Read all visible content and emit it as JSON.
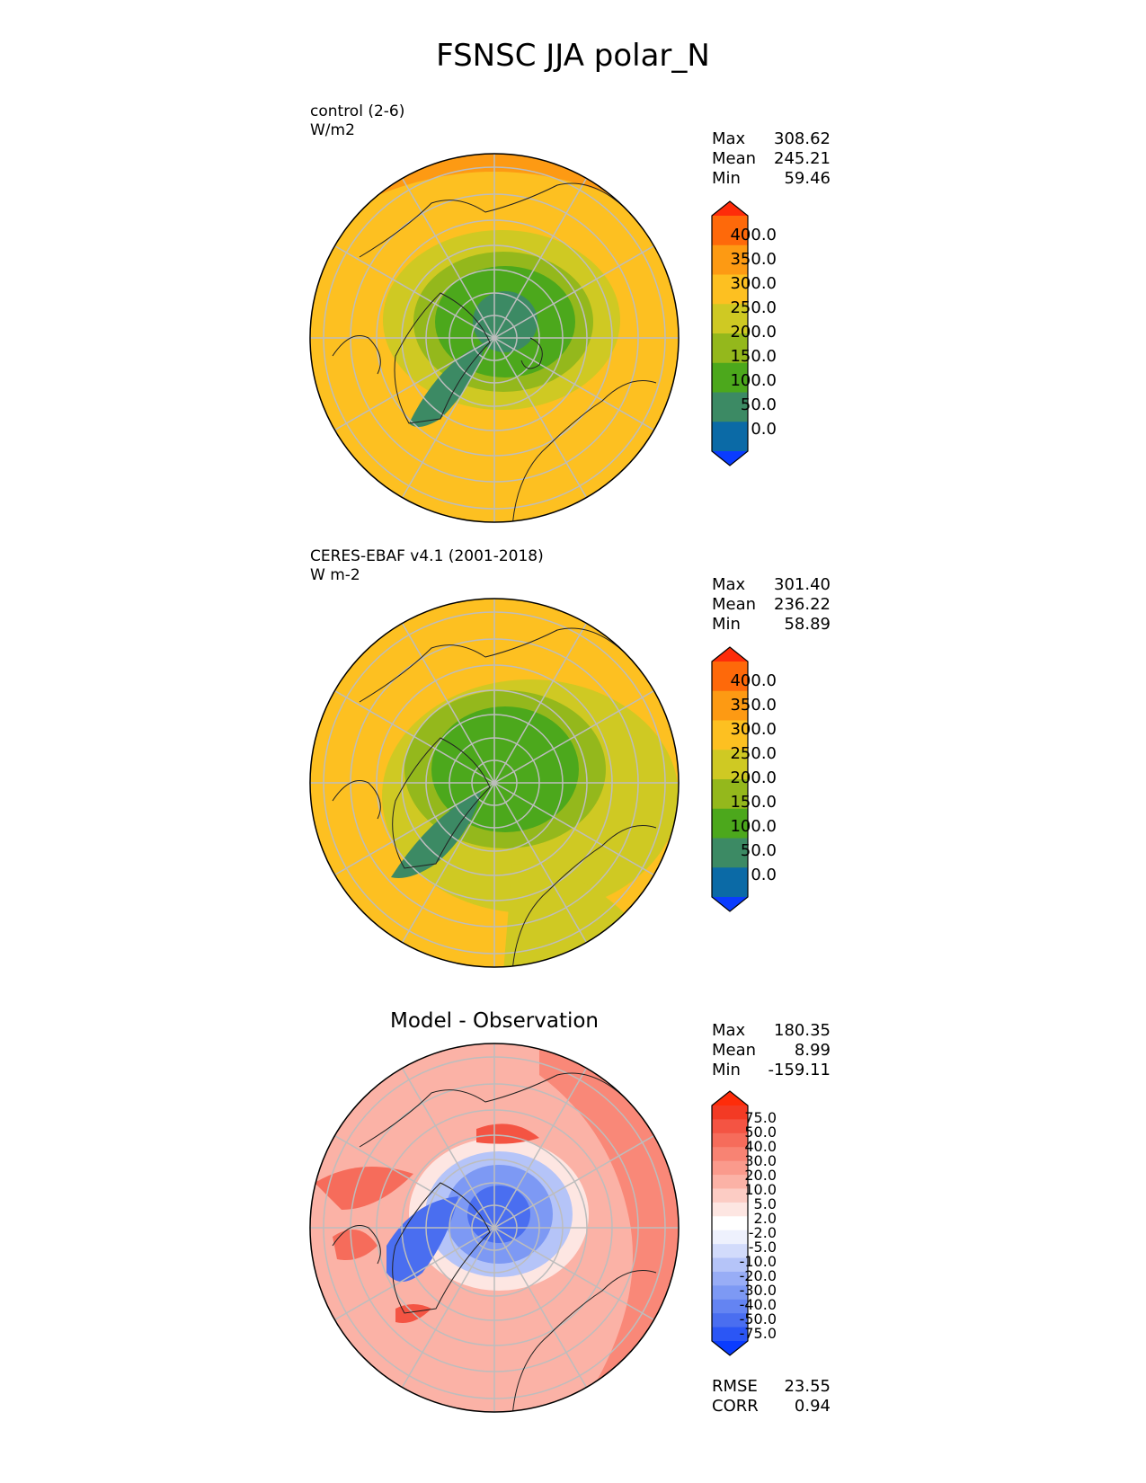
{
  "figure": {
    "title": "FSNSC JJA polar_N"
  },
  "panels": [
    {
      "id": "test",
      "name_line": "control (2-6)",
      "units_line": "W/m2",
      "stats": [
        {
          "label": "Max",
          "value": "308.62"
        },
        {
          "label": "Mean",
          "value": "245.21"
        },
        {
          "label": "Min",
          "value": "59.46"
        }
      ],
      "colorbar": {
        "colors": [
          "#0a3cff",
          "#0b6aa6",
          "#3c8a64",
          "#4ca81c",
          "#94b81c",
          "#cfc923",
          "#fdc021",
          "#fd9a13",
          "#fe690a",
          "#fe2c0a"
        ],
        "labels": [
          "400.0",
          "350.0",
          "300.0",
          "250.0",
          "200.0",
          "150.0",
          "100.0",
          "50.0",
          "0.0"
        ]
      }
    },
    {
      "id": "reference",
      "name_line": "CERES-EBAF v4.1 (2001-2018)",
      "units_line": "W m-2",
      "stats": [
        {
          "label": "Max",
          "value": "301.40"
        },
        {
          "label": "Mean",
          "value": "236.22"
        },
        {
          "label": "Min",
          "value": "58.89"
        }
      ],
      "colorbar": {
        "colors": [
          "#0a3cff",
          "#0b6aa6",
          "#3c8a64",
          "#4ca81c",
          "#94b81c",
          "#cfc923",
          "#fdc021",
          "#fd9a13",
          "#fe690a",
          "#fe2c0a"
        ],
        "labels": [
          "400.0",
          "350.0",
          "300.0",
          "250.0",
          "200.0",
          "150.0",
          "100.0",
          "50.0",
          "0.0"
        ]
      }
    },
    {
      "id": "difference",
      "title": "Model - Observation",
      "stats": [
        {
          "label": "Max",
          "value": "180.35"
        },
        {
          "label": "Mean",
          "value": "8.99"
        },
        {
          "label": "Min",
          "value": "-159.11"
        }
      ],
      "metrics": [
        {
          "label": "RMSE",
          "value": "23.55"
        },
        {
          "label": "CORR",
          "value": "0.94"
        }
      ],
      "colorbar": {
        "colors": [
          "#0a3cff",
          "#2b56f5",
          "#4a6ef0",
          "#6484f2",
          "#7d99f4",
          "#98adf6",
          "#b5c4f8",
          "#d2dbfb",
          "#eef1fd",
          "#ffffff",
          "#fde6e2",
          "#fcccc4",
          "#fbb2a6",
          "#fa9a8c",
          "#f88373",
          "#f66c5b",
          "#f45443",
          "#f33a24",
          "#fe2c0a"
        ],
        "labels": [
          "75.0",
          "50.0",
          "40.0",
          "30.0",
          "20.0",
          "10.0",
          "5.0",
          "2.0",
          "-2.0",
          "-5.0",
          "-10.0",
          "-20.0",
          "-30.0",
          "-40.0",
          "-50.0",
          "-75.0"
        ]
      }
    }
  ],
  "chart_data": [
    {
      "type": "heatmap",
      "projection": "north polar stereographic",
      "title": "control (2-6)",
      "units": "W/m2",
      "levels": [
        0,
        50,
        100,
        150,
        200,
        250,
        300,
        350,
        400
      ],
      "extend": "both",
      "stats": {
        "max": 308.62,
        "mean": 245.21,
        "min": 59.46
      },
      "grid": true
    },
    {
      "type": "heatmap",
      "projection": "north polar stereographic",
      "title": "CERES-EBAF v4.1 (2001-2018)",
      "units": "W m-2",
      "levels": [
        0,
        50,
        100,
        150,
        200,
        250,
        300,
        350,
        400
      ],
      "extend": "both",
      "stats": {
        "max": 301.4,
        "mean": 236.22,
        "min": 58.89
      },
      "grid": true
    },
    {
      "type": "heatmap",
      "projection": "north polar stereographic",
      "title": "Model - Observation",
      "levels": [
        -75,
        -50,
        -40,
        -30,
        -20,
        -10,
        -5,
        -2,
        2,
        5,
        10,
        20,
        30,
        40,
        50,
        75
      ],
      "extend": "both",
      "stats": {
        "max": 180.35,
        "mean": 8.99,
        "min": -159.11
      },
      "rmse": 23.55,
      "corr": 0.94,
      "grid": true
    }
  ]
}
